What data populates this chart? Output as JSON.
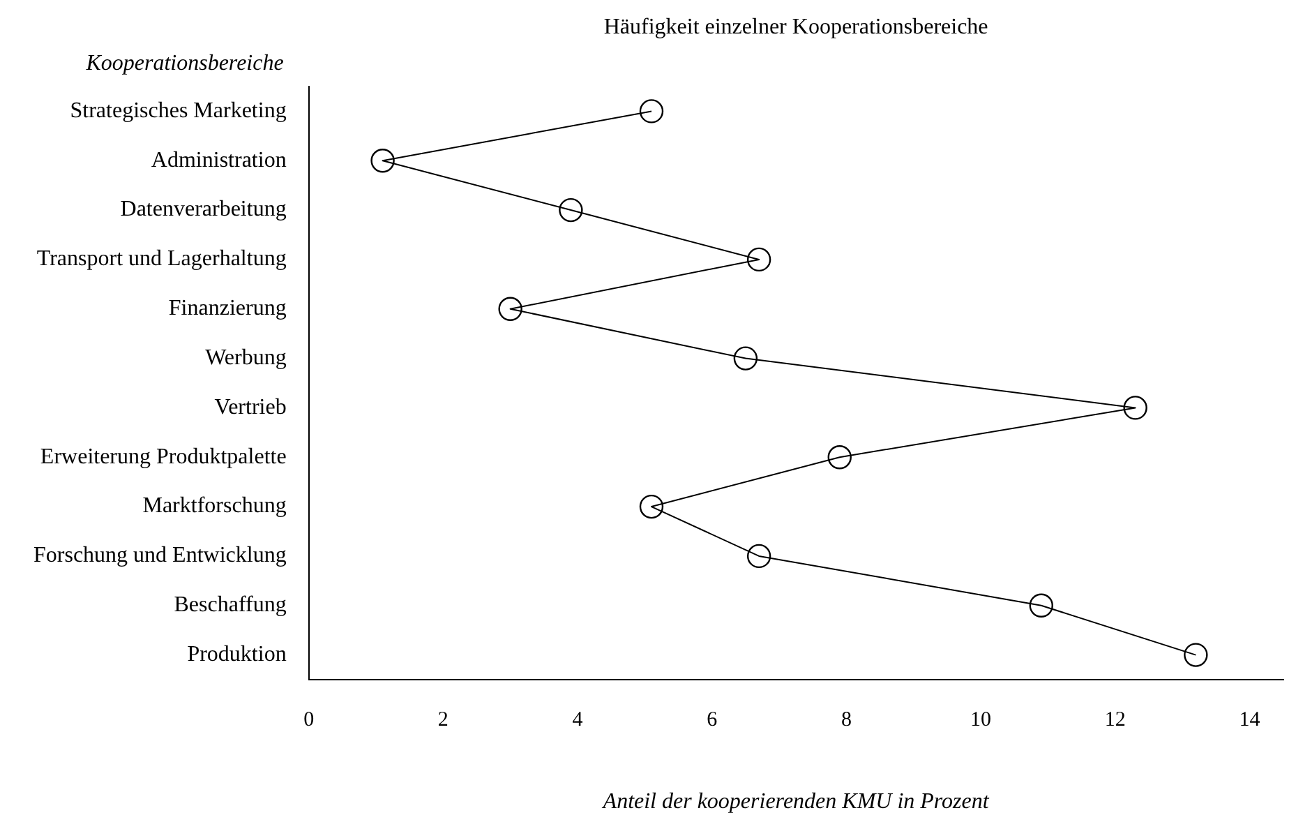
{
  "chart_data": {
    "type": "line",
    "orientation": "horizontal",
    "title": "Häufigkeit einzelner Kooperationsbereiche",
    "xlabel": "Anteil der kooperierenden KMU in Prozent",
    "ylabel": "Kooperationsbereiche",
    "categories": [
      "Strategisches Marketing",
      "Administration",
      "Datenverarbeitung",
      "Transport und Lagerhaltung",
      "Finanzierung",
      "Werbung",
      "Vertrieb",
      "Erweiterung Produktpalette",
      "Marktforschung",
      "Forschung und Entwicklung",
      "Beschaffung",
      "Produktion"
    ],
    "series": [
      {
        "color": "#000000",
        "values": [
          5.1,
          1.1,
          3.9,
          6.7,
          3.0,
          6.5,
          12.3,
          7.9,
          5.1,
          6.7,
          10.9,
          13.2
        ]
      }
    ],
    "xlim": [
      0,
      14.5
    ],
    "xticks": [
      0,
      2,
      4,
      6,
      8,
      10,
      12,
      14
    ],
    "grid": false,
    "legend": false,
    "marker": "circle",
    "line_style": "solid"
  }
}
